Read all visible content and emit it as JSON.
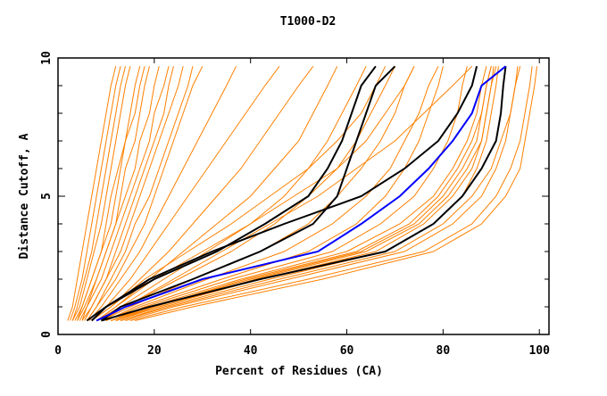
{
  "chart_data": {
    "type": "line",
    "title": "T1000-D2",
    "xlabel": "Percent of Residues (CA)",
    "ylabel": "Distance Cutoff, A",
    "xlim": [
      0,
      102
    ],
    "ylim": [
      0,
      10
    ],
    "xticks": [
      "0",
      "20",
      "40",
      "60",
      "80",
      "100"
    ],
    "yticks": [
      "0",
      "5",
      "10"
    ],
    "cutoffs": [
      0.5,
      1,
      2,
      3,
      4,
      5,
      6,
      7,
      8,
      9,
      9.7
    ],
    "colors": {
      "model": "#ff8000",
      "highlight": "#000000",
      "reference": "#0000ff"
    },
    "orange_series": [
      [
        2,
        3,
        4,
        5,
        6,
        7,
        8,
        9,
        10,
        11,
        12
      ],
      [
        2.5,
        3.5,
        5,
        6,
        7,
        8,
        9,
        10,
        11,
        12,
        13
      ],
      [
        3,
        4,
        5.5,
        7,
        8,
        9,
        10,
        11,
        12,
        13,
        14
      ],
      [
        3,
        4.5,
        6,
        7.5,
        9,
        10,
        11,
        12,
        13,
        14,
        15
      ],
      [
        3.5,
        5,
        7,
        9,
        10,
        11,
        12.5,
        14,
        15,
        16,
        17
      ],
      [
        4,
        5,
        7,
        9,
        11,
        12,
        13,
        14,
        16,
        17,
        18
      ],
      [
        4,
        5.5,
        8,
        10,
        12,
        13,
        14,
        16,
        17,
        18,
        19
      ],
      [
        4.5,
        6,
        8,
        10,
        12,
        14,
        16,
        17,
        19,
        20,
        21
      ],
      [
        5,
        6,
        9,
        11,
        13,
        15,
        17,
        19,
        20,
        22,
        23
      ],
      [
        5,
        7,
        10,
        12,
        14,
        16,
        18,
        20,
        22,
        23,
        24
      ],
      [
        5.5,
        7,
        10,
        13,
        15,
        17,
        19,
        21,
        23,
        25,
        26
      ],
      [
        6,
        8,
        11,
        14,
        16,
        19,
        21,
        23,
        25,
        27,
        28
      ],
      [
        6,
        8,
        12,
        15,
        18,
        20,
        22,
        24,
        26,
        28,
        30
      ],
      [
        6.5,
        9,
        13,
        17,
        20,
        23,
        26,
        29,
        32,
        35,
        37
      ],
      [
        7,
        10,
        15,
        19,
        23,
        27,
        31,
        35,
        39,
        43,
        46
      ],
      [
        7,
        11,
        17,
        23,
        28,
        33,
        38,
        42,
        46,
        50,
        53
      ],
      [
        8,
        12,
        19,
        26,
        33,
        40,
        45,
        50,
        53,
        56,
        58
      ],
      [
        8,
        13,
        22,
        31,
        40,
        47,
        52,
        56,
        59,
        62,
        64
      ],
      [
        9,
        14,
        25,
        36,
        45,
        52,
        58,
        62,
        65,
        68,
        70
      ],
      [
        9,
        15,
        28,
        42,
        52,
        58,
        63,
        67,
        70,
        72,
        74
      ],
      [
        10,
        16,
        31,
        47,
        57,
        64,
        69,
        72,
        75,
        77,
        79
      ],
      [
        10,
        17,
        34,
        52,
        62,
        68,
        72,
        75,
        77,
        79,
        80
      ],
      [
        11,
        18,
        36,
        57,
        67,
        74,
        78,
        81,
        83,
        84,
        85
      ],
      [
        11,
        19,
        38,
        60,
        71,
        78,
        82,
        85,
        87,
        88,
        89
      ],
      [
        12,
        20,
        40,
        63,
        74,
        80,
        84,
        87,
        88,
        89,
        90
      ],
      [
        12,
        21,
        42,
        66,
        76,
        82,
        86,
        88,
        89,
        90,
        91
      ],
      [
        13,
        22,
        44,
        68,
        78,
        84,
        87,
        89,
        90,
        91,
        91.5
      ],
      [
        12,
        21,
        41,
        64,
        75,
        81,
        85,
        88,
        89,
        90,
        90.5
      ],
      [
        11,
        20,
        39,
        62,
        73,
        79,
        83,
        86,
        88,
        89,
        90
      ],
      [
        14,
        24,
        48,
        72,
        82,
        88,
        91,
        93,
        94,
        95,
        95.5
      ],
      [
        15,
        26,
        52,
        76,
        86,
        91,
        94,
        96,
        97,
        98,
        98.5
      ],
      [
        13,
        23,
        46,
        70,
        80,
        86,
        90,
        92,
        94,
        95,
        96
      ],
      [
        16,
        28,
        55,
        78,
        88,
        93,
        96,
        97,
        98,
        99,
        99.5
      ],
      [
        9,
        14,
        24,
        34,
        44,
        54,
        62,
        70,
        76,
        82,
        86
      ],
      [
        8,
        12,
        20,
        30,
        40,
        49,
        58,
        64,
        68,
        72,
        74
      ],
      [
        7,
        11,
        18,
        27,
        36,
        44,
        52,
        58,
        63,
        66,
        68
      ]
    ],
    "black_series": [
      [
        7,
        10,
        20,
        33,
        43,
        52,
        56,
        59,
        61,
        63,
        66
      ],
      [
        9,
        13,
        28,
        42,
        53,
        58,
        60,
        62,
        64,
        66,
        70
      ],
      [
        6,
        10,
        19,
        32,
        47,
        63,
        72,
        79,
        83,
        86,
        87
      ],
      [
        9,
        19,
        42,
        68,
        78,
        84,
        88,
        91,
        92,
        92.5,
        93
      ]
    ],
    "blue_series": [
      8,
      14,
      30,
      54,
      63,
      71,
      77,
      82,
      86,
      88,
      93
    ]
  }
}
